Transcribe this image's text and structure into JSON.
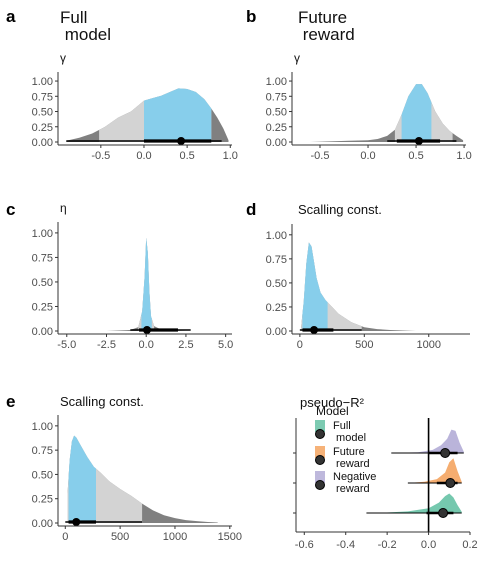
{
  "chart_data": [
    {
      "letter": "a",
      "title": "Full\n model",
      "ylabel": "γ",
      "type": "area",
      "xlim": [
        -0.95,
        1.02
      ],
      "ylim": [
        0,
        1.05
      ],
      "xticks": [
        -0.5,
        0.0,
        0.5,
        1.0
      ],
      "xtick_labels": [
        "-0.5",
        "0.0",
        "0.5",
        "1.0"
      ],
      "yticks": [
        0,
        0.25,
        0.5,
        0.75,
        1.0
      ],
      "ytick_labels": [
        "0.00",
        "0.25",
        "0.50",
        "0.75",
        "1.00"
      ],
      "density": {
        "x": [
          -0.9,
          -0.75,
          -0.6,
          -0.45,
          -0.3,
          -0.15,
          -0.05,
          0.0,
          0.1,
          0.2,
          0.3,
          0.4,
          0.5,
          0.6,
          0.7,
          0.78,
          0.85,
          0.92,
          0.98
        ],
        "y": [
          0.02,
          0.07,
          0.14,
          0.25,
          0.4,
          0.5,
          0.62,
          0.68,
          0.72,
          0.76,
          0.82,
          0.88,
          0.87,
          0.82,
          0.7,
          0.55,
          0.4,
          0.22,
          0.03
        ]
      },
      "interval_outer": [
        -0.52,
        0.78
      ],
      "interval_inner": [
        0.0,
        0.78
      ],
      "point": 0.43,
      "line_wide": [
        0.0,
        0.78
      ],
      "line_thin": [
        -0.9,
        0.9
      ]
    },
    {
      "letter": "b",
      "title": "Future\n reward",
      "ylabel": "γ",
      "type": "area",
      "xlim": [
        -0.75,
        1.02
      ],
      "ylim": [
        0,
        1.05
      ],
      "xticks": [
        -0.5,
        0.0,
        0.5,
        1.0
      ],
      "xtick_labels": [
        "-0.5",
        "0.0",
        "0.5",
        "1.0"
      ],
      "yticks": [
        0,
        0.25,
        0.5,
        0.75,
        1.0
      ],
      "ytick_labels": [
        "0.00",
        "0.25",
        "0.50",
        "0.75",
        "1.00"
      ],
      "density": {
        "x": [
          -0.6,
          -0.4,
          -0.2,
          0.0,
          0.1,
          0.2,
          0.28,
          0.35,
          0.42,
          0.5,
          0.56,
          0.62,
          0.7,
          0.78,
          0.85,
          0.92,
          0.99
        ],
        "y": [
          0.0,
          0.01,
          0.02,
          0.03,
          0.05,
          0.1,
          0.2,
          0.45,
          0.75,
          0.95,
          0.95,
          0.8,
          0.5,
          0.3,
          0.18,
          0.1,
          0.03
        ]
      },
      "interval_outer": [
        0.28,
        0.88
      ],
      "interval_inner": [
        0.35,
        0.66
      ],
      "point": 0.53,
      "line_wide": [
        0.3,
        0.75
      ],
      "line_thin": [
        0.2,
        0.92
      ]
    },
    {
      "letter": "c",
      "title": "",
      "ylabel": "η",
      "type": "area",
      "xlim": [
        -5.3,
        5.4
      ],
      "ylim": [
        0,
        1.05
      ],
      "xticks": [
        -5.0,
        -2.5,
        0.0,
        2.5,
        5.0
      ],
      "xtick_labels": [
        "-5.0",
        "-2.5",
        "0.0",
        "2.5",
        "5.0"
      ],
      "yticks": [
        0,
        0.25,
        0.5,
        0.75,
        1.0
      ],
      "ytick_labels": [
        "0.00",
        "0.25",
        "0.50",
        "0.75",
        "1.00"
      ],
      "density": {
        "x": [
          -4.2,
          -2.5,
          -1.0,
          -0.5,
          -0.25,
          -0.1,
          0.0,
          0.1,
          0.2,
          0.3,
          0.5,
          1.0,
          2.5,
          4.5
        ],
        "y": [
          0.0,
          0.0,
          0.01,
          0.04,
          0.2,
          0.55,
          0.95,
          0.8,
          0.4,
          0.15,
          0.05,
          0.01,
          0.0,
          0.0
        ]
      },
      "interval_outer": [
        -0.5,
        0.5
      ],
      "interval_inner": [
        -0.3,
        0.35
      ],
      "point": 0.05,
      "line_wide": [
        -0.45,
        2.0
      ],
      "line_thin": [
        -1.0,
        2.8
      ]
    },
    {
      "letter": "d",
      "title": "Scalling const.",
      "ylabel": "",
      "type": "area",
      "xlim": [
        -30,
        1320
      ],
      "ylim": [
        0,
        1.05
      ],
      "xticks": [
        0,
        500,
        1000
      ],
      "xtick_labels": [
        "0",
        "500",
        "1000"
      ],
      "yticks": [
        0,
        0.25,
        0.5,
        0.75,
        1.0
      ],
      "ytick_labels": [
        "0.00",
        "0.25",
        "0.50",
        "0.75",
        "1.00"
      ],
      "density": {
        "x": [
          10,
          30,
          50,
          70,
          90,
          110,
          130,
          160,
          200,
          250,
          300,
          400,
          500,
          600,
          700,
          800,
          900
        ],
        "y": [
          0.05,
          0.3,
          0.7,
          0.92,
          0.88,
          0.72,
          0.55,
          0.4,
          0.32,
          0.25,
          0.18,
          0.09,
          0.04,
          0.02,
          0.01,
          0.005,
          0.0
        ]
      },
      "interval_outer": [
        10,
        480
      ],
      "interval_inner": [
        20,
        215
      ],
      "point": 110,
      "line_wide": [
        20,
        260
      ],
      "line_thin": [
        0,
        480
      ]
    },
    {
      "letter": "e",
      "title": "Scalling const.",
      "ylabel": "",
      "type": "area",
      "xlim": [
        -30,
        1520
      ],
      "ylim": [
        0,
        1.05
      ],
      "xticks": [
        0,
        500,
        1000,
        1500
      ],
      "xtick_labels": [
        "0",
        "500",
        "1000",
        "1500"
      ],
      "yticks": [
        0,
        0.25,
        0.5,
        0.75,
        1.0
      ],
      "ytick_labels": [
        "0.00",
        "0.25",
        "0.50",
        "0.75",
        "1.00"
      ],
      "density": {
        "x": [
          20,
          40,
          60,
          80,
          100,
          140,
          200,
          260,
          320,
          400,
          500,
          600,
          700,
          800,
          900,
          1000,
          1100,
          1200,
          1300,
          1390
        ],
        "y": [
          0.3,
          0.65,
          0.84,
          0.9,
          0.88,
          0.8,
          0.68,
          0.58,
          0.52,
          0.43,
          0.35,
          0.28,
          0.2,
          0.13,
          0.08,
          0.05,
          0.03,
          0.02,
          0.01,
          0.005
        ]
      },
      "interval_outer": [
        20,
        700
      ],
      "interval_inner": [
        30,
        280
      ],
      "point": 100,
      "line_wide": [
        30,
        280
      ],
      "line_thin": [
        0,
        700
      ]
    },
    {
      "letter": "",
      "title": "pseudo−R²",
      "ylabel": "",
      "type": "area",
      "xlim": [
        -0.64,
        0.2
      ],
      "xticks": [
        -0.6,
        -0.4,
        -0.2,
        0.0,
        0.2
      ],
      "xtick_labels": [
        "-0.6",
        "-0.4",
        "-0.2",
        "0.0",
        "0.2"
      ],
      "legend_title": "Model",
      "series": [
        {
          "name": "Full\n model",
          "color": "#66c2a5",
          "density": {
            "x": [
              -0.3,
              -0.2,
              -0.1,
              0.0,
              0.05,
              0.08,
              0.1,
              0.12,
              0.14,
              0.16
            ],
            "y": [
              0.0,
              0.02,
              0.06,
              0.18,
              0.4,
              0.65,
              0.75,
              0.6,
              0.3,
              0.05
            ]
          },
          "point": 0.07,
          "line": [
            -0.01,
            0.12
          ]
        },
        {
          "name": "Future\n reward",
          "color": "#f4a460",
          "density": {
            "x": [
              -0.1,
              -0.02,
              0.04,
              0.08,
              0.1,
              0.12,
              0.14,
              0.16
            ],
            "y": [
              0.0,
              0.05,
              0.15,
              0.4,
              0.8,
              0.95,
              0.45,
              0.05
            ]
          },
          "point": 0.105,
          "line": [
            0.04,
            0.14
          ]
        },
        {
          "name": "Negative\n reward",
          "color": "#b3acd6",
          "density": {
            "x": [
              -0.18,
              -0.05,
              0.02,
              0.06,
              0.09,
              0.11,
              0.13,
              0.15,
              0.17
            ],
            "y": [
              0.0,
              0.03,
              0.12,
              0.3,
              0.55,
              0.9,
              0.85,
              0.4,
              0.05
            ]
          },
          "point": 0.08,
          "line": [
            0.0,
            0.14
          ]
        }
      ]
    }
  ],
  "colors": {
    "interval": "#87ceeb",
    "outer": "#d3d3d3",
    "tail": "#808080",
    "axis": "#333333",
    "point": "#000000"
  }
}
